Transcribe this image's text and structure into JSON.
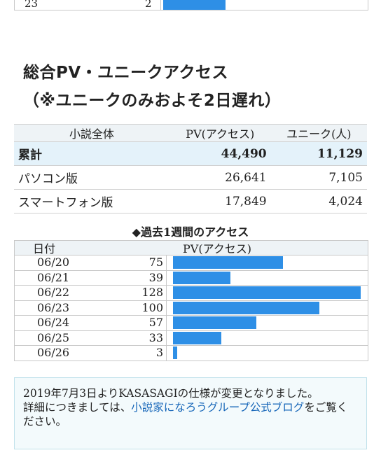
{
  "top_fragment": {
    "date": "23",
    "value": "2",
    "fraction": 0.032
  },
  "section_title": "総合PV・ユニークアクセス",
  "section_subtitle": "（※ユニークのみおよそ2日遅れ）",
  "summary": {
    "headers": [
      "小説全体",
      "PV(アクセス)",
      "ユニーク(人)"
    ],
    "rows": [
      {
        "label": "累計",
        "pv": "44,490",
        "unique": "11,129"
      },
      {
        "label": "パソコン版",
        "pv": "26,641",
        "unique": "7,105"
      },
      {
        "label": "スマートフォン版",
        "pv": "17,849",
        "unique": "4,024"
      }
    ]
  },
  "weekly": {
    "title": "◆過去1週間のアクセス",
    "col_date": "日付",
    "col_pv": "PV(アクセス)",
    "rows": [
      {
        "date": "06/20",
        "pv": 75
      },
      {
        "date": "06/21",
        "pv": 39
      },
      {
        "date": "06/22",
        "pv": 128
      },
      {
        "date": "06/23",
        "pv": 100
      },
      {
        "date": "06/24",
        "pv": 57
      },
      {
        "date": "06/25",
        "pv": 33
      },
      {
        "date": "06/26",
        "pv": 3
      }
    ],
    "bar_color": "#2e8fe6"
  },
  "notice": {
    "text1": "2019年7月3日よりKASASAGIの仕様が変更となりました。",
    "text2": "詳細につきましては、",
    "link": "小説家になろうグループ公式ブログ",
    "text3": "をご覧ください。"
  }
}
